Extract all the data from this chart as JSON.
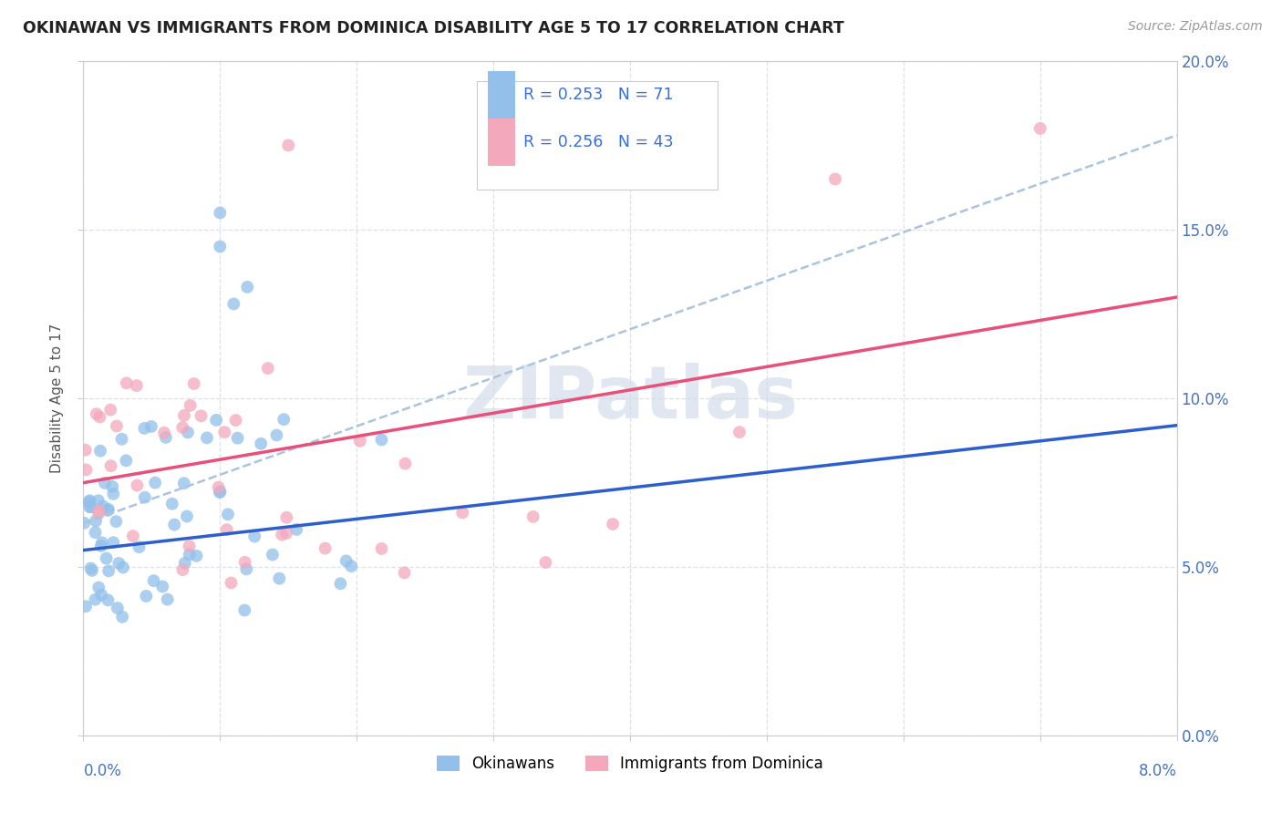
{
  "title": "OKINAWAN VS IMMIGRANTS FROM DOMINICA DISABILITY AGE 5 TO 17 CORRELATION CHART",
  "source": "Source: ZipAtlas.com",
  "ylabel": "Disability Age 5 to 17",
  "xmin": 0.0,
  "xmax": 0.08,
  "ymin": 0.0,
  "ymax": 0.2,
  "legend1_r": "0.253",
  "legend1_n": "71",
  "legend2_r": "0.256",
  "legend2_n": "43",
  "legend_label1": "Okinawans",
  "legend_label2": "Immigrants from Dominica",
  "blue_color": "#92c0ea",
  "pink_color": "#f4a8bc",
  "trend_blue_color": "#2d5fcc",
  "trend_pink_color": "#e8507a",
  "trend_dashed_color": "#aac4e0",
  "blue_trend_x0": 0.0,
  "blue_trend_y0": 0.055,
  "blue_trend_x1": 0.08,
  "blue_trend_y1": 0.092,
  "pink_trend_x0": 0.0,
  "pink_trend_y0": 0.075,
  "pink_trend_x1": 0.08,
  "pink_trend_y1": 0.13,
  "dashed_trend_x0": 0.0,
  "dashed_trend_y0": 0.063,
  "dashed_trend_x1": 0.08,
  "dashed_trend_y1": 0.178,
  "watermark_text": "ZIPatlas",
  "watermark_color": "#cdd8e8",
  "background_color": "#ffffff",
  "grid_color": "#dde0e8",
  "grid_style": "--"
}
